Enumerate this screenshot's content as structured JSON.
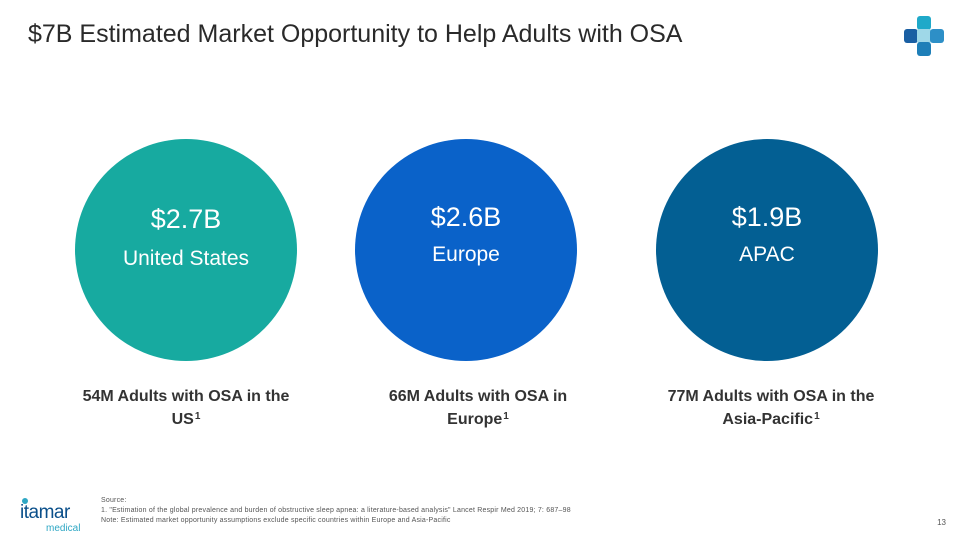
{
  "slide": {
    "title": "$7B Estimated Market Opportunity to Help Adults with OSA",
    "page_number": "13"
  },
  "markets": [
    {
      "amount": "$2.7B",
      "region": "United States",
      "caption": "54M Adults with OSA in the US",
      "footnote_ref": "1",
      "color": "#17aaa0"
    },
    {
      "amount": "$2.6B",
      "region": "Europe",
      "caption": "66M Adults with OSA in Europe",
      "footnote_ref": "1",
      "color": "#0a62c9"
    },
    {
      "amount": "$1.9B",
      "region": "APAC",
      "caption": "77M Adults with OSA in the Asia-Pacific",
      "footnote_ref": "1",
      "color": "#035f93"
    }
  ],
  "footer": {
    "source_label": "Source:",
    "source_1": "1.   \"Estimation of the global prevalence and burden of obstructive sleep apnea: a literature-based analysis\" Lancet Respir Med 2019; 7: 687–98",
    "note": "Note: Estimated market opportunity assumptions exclude specific countries within Europe and Asia-Pacific"
  },
  "logo": {
    "wordmark": "itamar",
    "sub": "medical"
  },
  "icons": {
    "brand_mark": "medical-cross-icon"
  }
}
